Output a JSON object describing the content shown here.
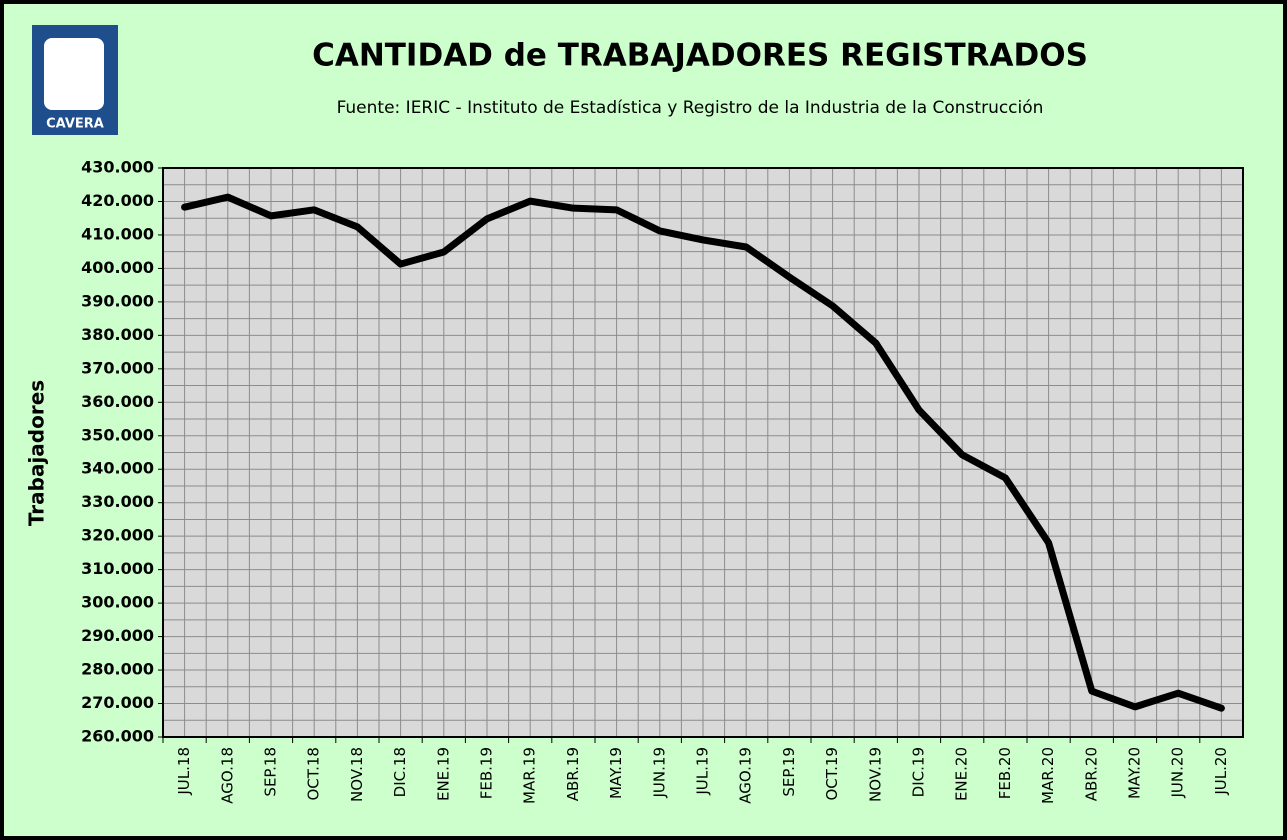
{
  "logo_text": "CAVERA",
  "chart_data": {
    "type": "line",
    "title": "CANTIDAD de TRABAJADORES REGISTRADOS",
    "subtitle": "Fuente: IERIC - Instituto de Estadística y Registro de la Industria de la Construcción",
    "y_label": "Trabajadores",
    "categories": [
      "JUL.18",
      "AGO.18",
      "SEP.18",
      "OCT.18",
      "NOV.18",
      "DIC.18",
      "ENE.19",
      "FEB.19",
      "MAR.19",
      "ABR.19",
      "MAY.19",
      "JUN.19",
      "JUL.19",
      "AGO.19",
      "SEP.19",
      "OCT.19",
      "NOV.19",
      "DIC.19",
      "ENE.20",
      "FEB.20",
      "MAR.20",
      "ABR.20",
      "MAY.20",
      "JUN.20",
      "JUL.20"
    ],
    "series": [
      {
        "name": "Trabajadores",
        "color": "#000000",
        "values": [
          418300,
          421300,
          415700,
          417500,
          412400,
          401300,
          404900,
          414800,
          420100,
          418000,
          417500,
          411200,
          408500,
          406400,
          397400,
          388800,
          377700,
          357700,
          344300,
          337400,
          318000,
          273700,
          269000,
          273100,
          268600
        ]
      }
    ],
    "ylim": [
      260000,
      430000
    ],
    "yticks": [
      {
        "value": 260000,
        "label": "260.000"
      },
      {
        "value": 270000,
        "label": "270.000"
      },
      {
        "value": 280000,
        "label": "280.000"
      },
      {
        "value": 290000,
        "label": "290.000"
      },
      {
        "value": 300000,
        "label": "300.000"
      },
      {
        "value": 310000,
        "label": "310.000"
      },
      {
        "value": 320000,
        "label": "320.000"
      },
      {
        "value": 330000,
        "label": "330.000"
      },
      {
        "value": 340000,
        "label": "340.000"
      },
      {
        "value": 350000,
        "label": "350.000"
      },
      {
        "value": 360000,
        "label": "360.000"
      },
      {
        "value": 370000,
        "label": "370.000"
      },
      {
        "value": 380000,
        "label": "380.000"
      },
      {
        "value": 390000,
        "label": "390.000"
      },
      {
        "value": 400000,
        "label": "400.000"
      },
      {
        "value": 410000,
        "label": "410.000"
      },
      {
        "value": 420000,
        "label": "420.000"
      },
      {
        "value": 430000,
        "label": "430.000"
      }
    ],
    "grid": true
  }
}
